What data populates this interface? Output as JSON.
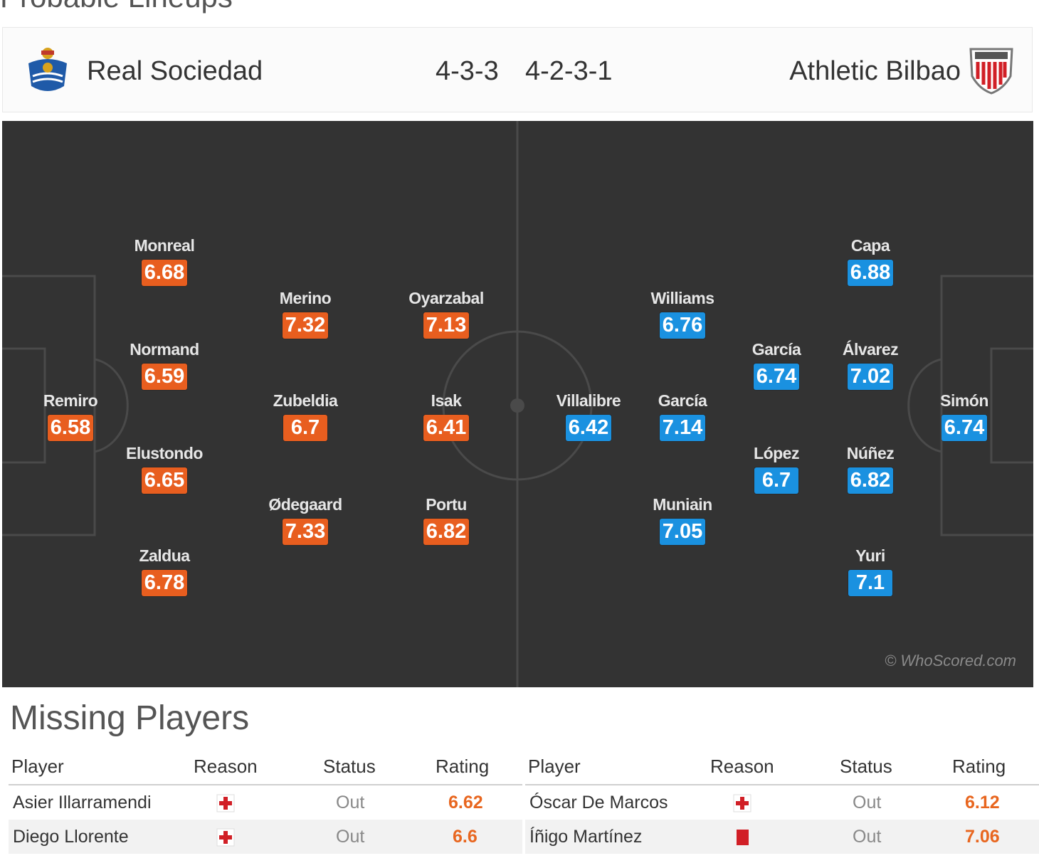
{
  "section_title": "Probable Lineups",
  "home": {
    "name": "Real Sociedad",
    "formation": "4-3-3",
    "crest_icon": "real-sociedad-crest-icon",
    "color": "#e85e1f"
  },
  "away": {
    "name": "Athletic Bilbao",
    "formation": "4-2-3-1",
    "crest_icon": "athletic-bilbao-crest-icon",
    "color": "#1a91e0"
  },
  "pitch": {
    "watermark": "© WhoScored.com",
    "home_players": [
      {
        "name": "Remiro",
        "rating": "6.58"
      },
      {
        "name": "Monreal",
        "rating": "6.68"
      },
      {
        "name": "Normand",
        "rating": "6.59"
      },
      {
        "name": "Elustondo",
        "rating": "6.65"
      },
      {
        "name": "Zaldua",
        "rating": "6.78"
      },
      {
        "name": "Merino",
        "rating": "7.32"
      },
      {
        "name": "Zubeldia",
        "rating": "6.7"
      },
      {
        "name": "Ødegaard",
        "rating": "7.33"
      },
      {
        "name": "Oyarzabal",
        "rating": "7.13"
      },
      {
        "name": "Isak",
        "rating": "6.41"
      },
      {
        "name": "Portu",
        "rating": "6.82"
      }
    ],
    "away_players": [
      {
        "name": "Villalibre",
        "rating": "6.42"
      },
      {
        "name": "Williams",
        "rating": "6.76"
      },
      {
        "name": "García",
        "rating": "7.14"
      },
      {
        "name": "Muniain",
        "rating": "7.05"
      },
      {
        "name": "García",
        "rating": "6.74"
      },
      {
        "name": "López",
        "rating": "6.7"
      },
      {
        "name": "Capa",
        "rating": "6.88"
      },
      {
        "name": "Álvarez",
        "rating": "7.02"
      },
      {
        "name": "Núñez",
        "rating": "6.82"
      },
      {
        "name": "Yuri",
        "rating": "7.1"
      },
      {
        "name": "Simón",
        "rating": "6.74"
      }
    ]
  },
  "missing": {
    "title": "Missing Players",
    "headers": {
      "player": "Player",
      "reason": "Reason",
      "status": "Status",
      "rating": "Rating"
    },
    "home_rows": [
      {
        "player": "Asier Illarramendi",
        "reason": "injury-icon",
        "status": "Out",
        "rating": "6.62"
      },
      {
        "player": "Diego Llorente",
        "reason": "injury-icon",
        "status": "Out",
        "rating": "6.6"
      }
    ],
    "away_rows": [
      {
        "player": "Óscar De Marcos",
        "reason": "injury-icon",
        "status": "Out",
        "rating": "6.12"
      },
      {
        "player": "Íñigo Martínez",
        "reason": "red-card-icon",
        "status": "Out",
        "rating": "7.06"
      }
    ]
  }
}
